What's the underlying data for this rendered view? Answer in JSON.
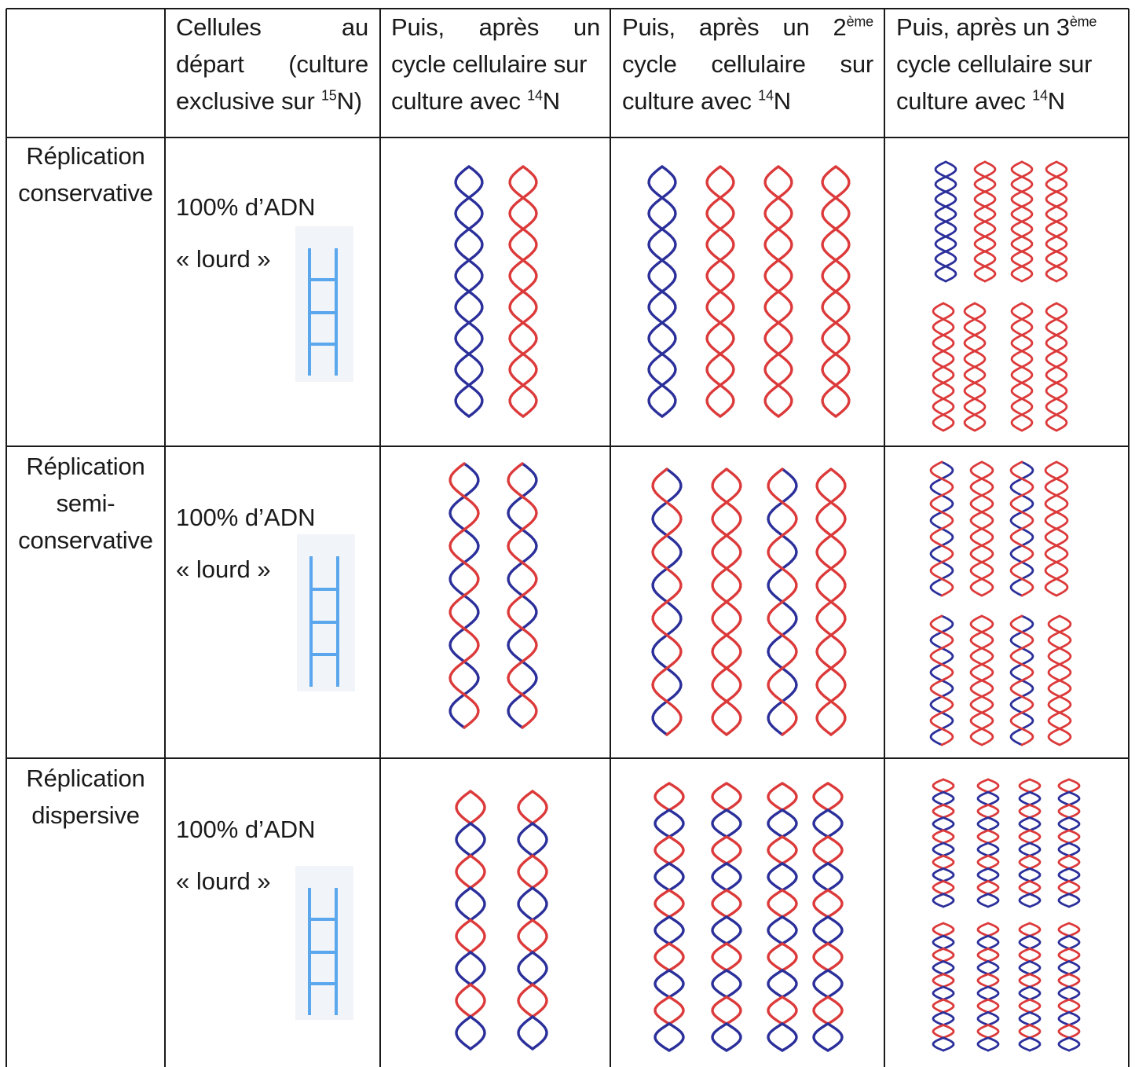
{
  "colors": {
    "heavy_strand": "#2b2f9a",
    "light_strand": "#dc3a3a",
    "ladder": "#5aa7ee",
    "ladder_bg": "#f1f4f8",
    "grid": "#1a1a1a"
  },
  "header": {
    "col1": {
      "line1_a": "Cellules",
      "line1_b": "au",
      "line2_a": "départ",
      "line2_b": "(culture",
      "line3_pre": "exclusive sur ",
      "sup": "15",
      "line3_post": "N)"
    },
    "col2": {
      "line1_a": "Puis,",
      "line1_b": "après",
      "line1_c": "un",
      "line2": "cycle cellulaire sur",
      "line3_pre": "culture avec ",
      "sup": "14",
      "line3_post": "N"
    },
    "col3": {
      "line1_a": "Puis,",
      "line1_b": "après",
      "line1_c": "un",
      "line1_d": "2",
      "sup_eme": "ème",
      "line2_a": "cycle",
      "line2_b": "cellulaire",
      "line2_c": "sur",
      "line3_pre": "culture avec ",
      "sup": "14",
      "line3_post": "N"
    },
    "col4": {
      "line1_pre": "Puis, après un 3",
      "sup_eme": "ème",
      "line2": "cycle cellulaire sur",
      "line3_pre": "culture avec ",
      "sup": "14",
      "line3_post": "N"
    }
  },
  "rows": [
    {
      "label_lines": [
        "Réplication",
        "conservative"
      ],
      "start_text_1": "100% d’ADN",
      "start_text_2": "« lourd »"
    },
    {
      "label_lines": [
        "Réplication",
        "semi-",
        "conservative"
      ],
      "start_text_1": "100% d’ADN",
      "start_text_2": "« lourd »"
    },
    {
      "label_lines": [
        "Réplication",
        "dispersive"
      ],
      "start_text_1": "100% d’ADN",
      "start_text_2": "« lourd »"
    }
  ]
}
